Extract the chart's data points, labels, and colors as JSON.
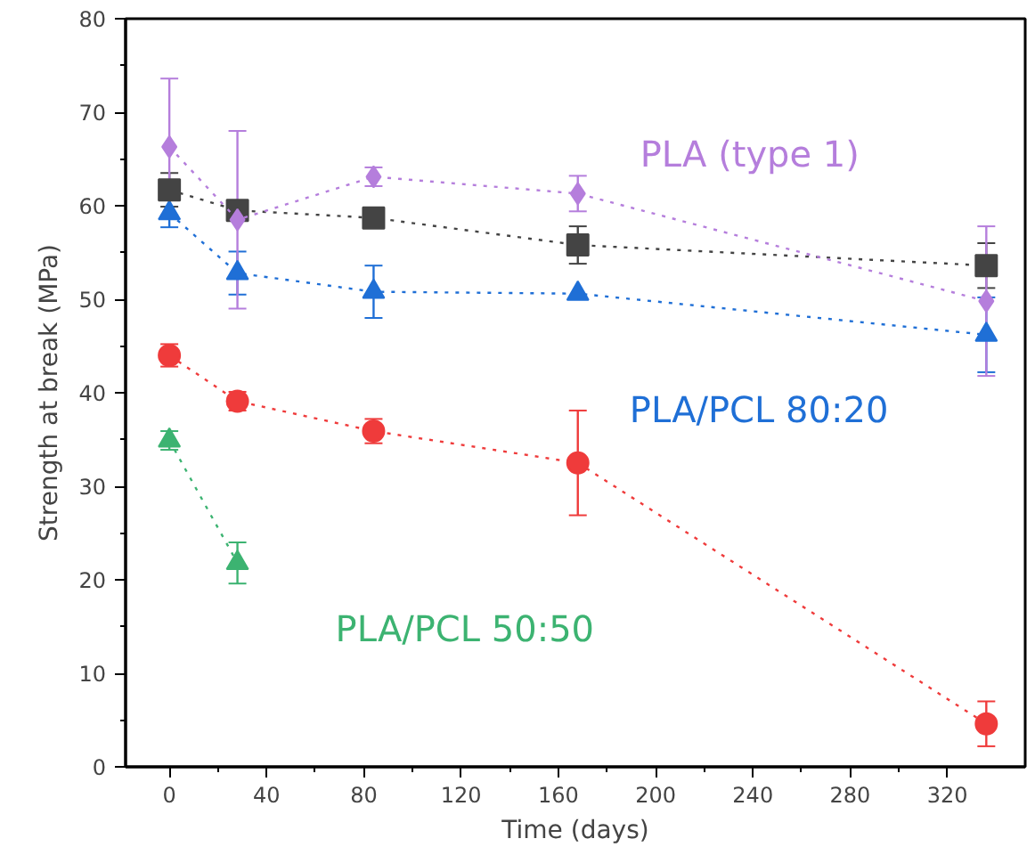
{
  "chart_data": {
    "type": "line",
    "xlabel": "Time (days)",
    "ylabel": "Strength at break (MPa)",
    "xlim": [
      -18,
      352
    ],
    "ylim": [
      0,
      80
    ],
    "xticks": [
      0,
      40,
      80,
      120,
      160,
      200,
      240,
      280,
      320
    ],
    "yticks": [
      0,
      10,
      20,
      30,
      40,
      50,
      60,
      70,
      80
    ],
    "grid": false,
    "line_style": "dotted",
    "series": [
      {
        "name": "PLA (type 1)",
        "color": "#b57edc",
        "marker": "diamond",
        "x": [
          0,
          28,
          84,
          168,
          336
        ],
        "values": [
          66.3,
          58.5,
          63.1,
          61.3,
          49.8
        ],
        "errors": [
          7.3,
          9.5,
          1.0,
          1.9,
          8.0
        ]
      },
      {
        "color": "#444444",
        "marker": "square",
        "x": [
          0,
          28,
          84,
          168,
          336
        ],
        "values": [
          61.7,
          59.5,
          58.7,
          55.8,
          53.6
        ],
        "errors": [
          1.8,
          1.0,
          null,
          2.0,
          2.4
        ]
      },
      {
        "name": "PLA/PCL 80:20",
        "color": "#1f6fd6",
        "marker": "triangle",
        "x": [
          0,
          28,
          84,
          168,
          336
        ],
        "values": [
          59.2,
          52.8,
          50.8,
          50.6,
          46.2
        ],
        "errors": [
          1.5,
          2.3,
          2.8,
          null,
          4.0
        ]
      },
      {
        "color": "#ef3b3b",
        "marker": "circle",
        "x": [
          0,
          28,
          84,
          168,
          336
        ],
        "values": [
          44.0,
          39.1,
          35.9,
          32.5,
          4.6
        ],
        "errors": [
          1.2,
          1.0,
          1.3,
          5.6,
          2.4
        ]
      },
      {
        "name": "PLA/PCL 50:50",
        "color": "#3cb371",
        "marker": "triangle",
        "x": [
          0,
          28
        ],
        "values": [
          34.9,
          21.8
        ],
        "errors": [
          1.0,
          2.2
        ]
      }
    ]
  }
}
